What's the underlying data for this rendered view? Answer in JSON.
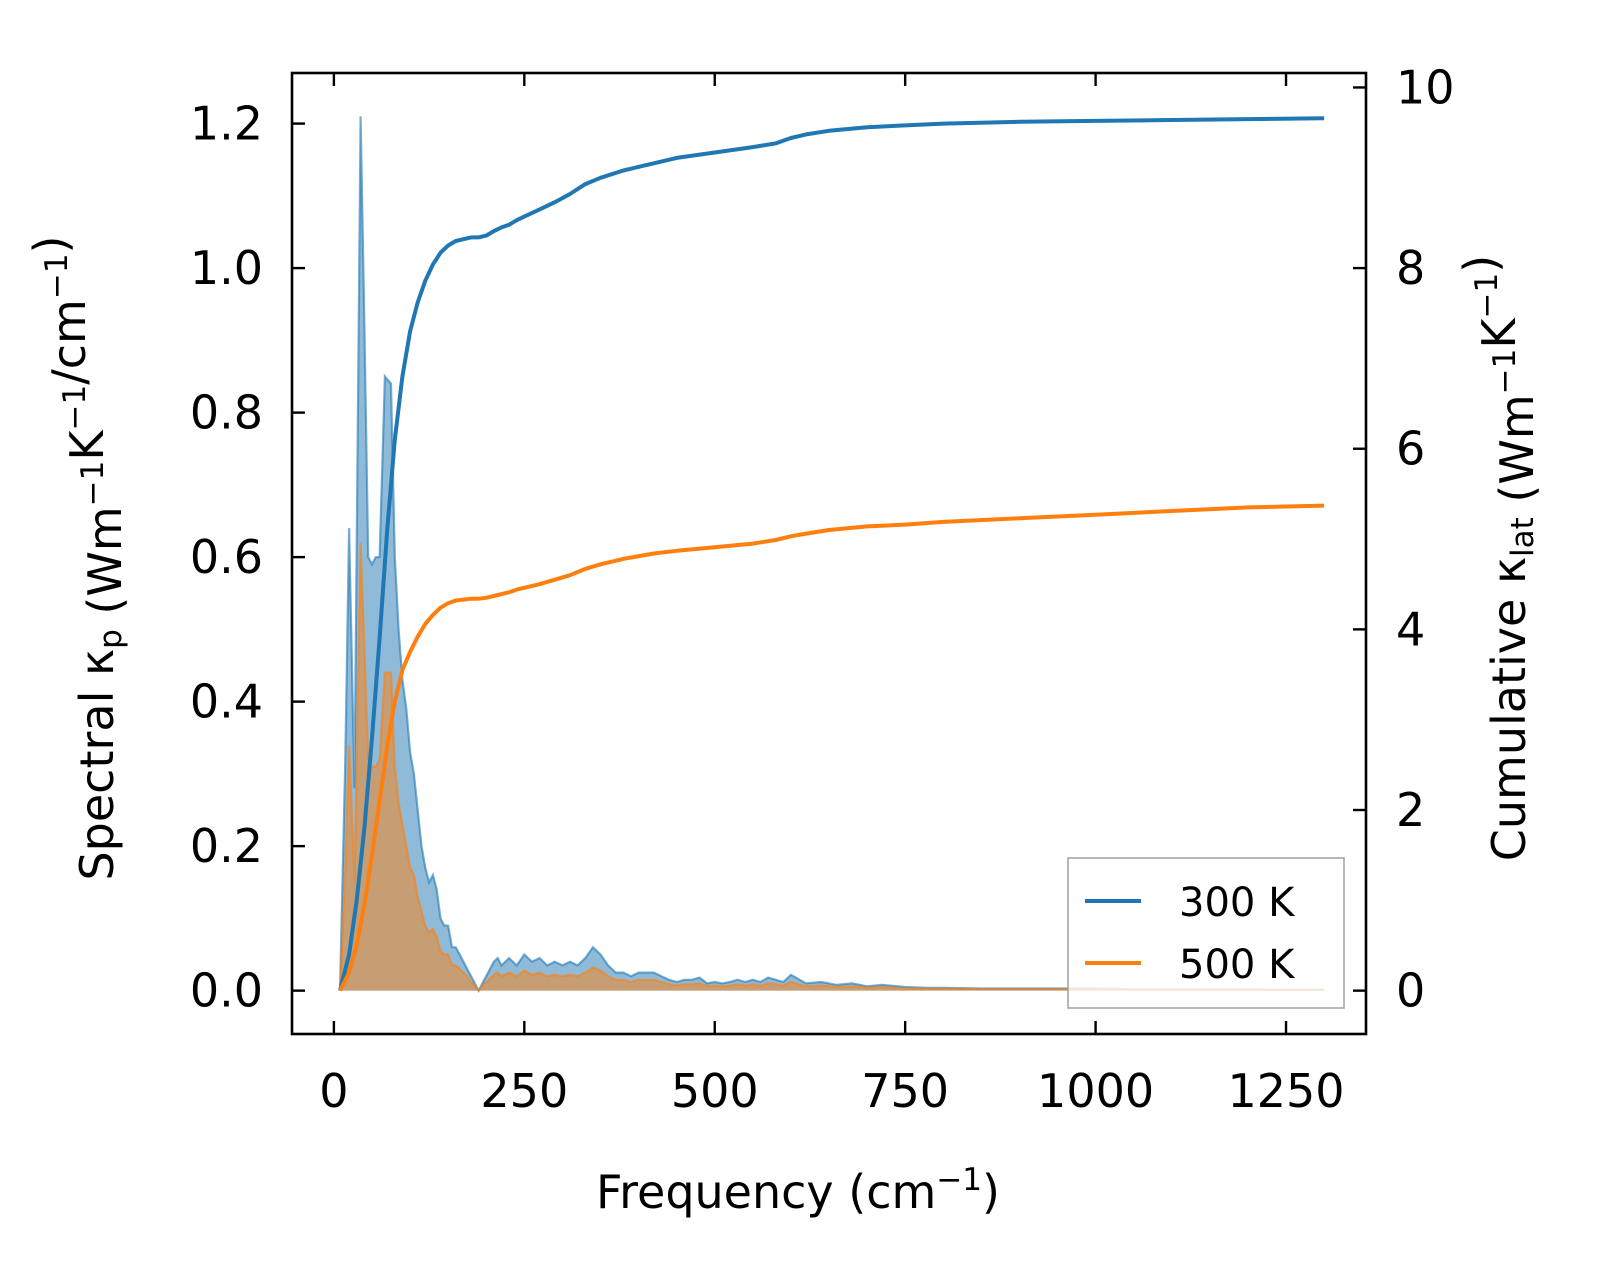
{
  "chart_data": {
    "type": "area",
    "xlabel": "Frequency (cm",
    "xlabel_sup": "−1",
    "xlabel_end": ")",
    "ylabel_left": {
      "parts": [
        {
          "t": "Spectral κ"
        },
        {
          "t": "p",
          "sub": true
        },
        {
          "t": " (Wm"
        },
        {
          "t": "−1",
          "sup": true
        },
        {
          "t": "K"
        },
        {
          "t": "−1",
          "sup": true
        },
        {
          "t": "/cm"
        },
        {
          "t": "−1",
          "sup": true
        },
        {
          "t": ")"
        }
      ]
    },
    "ylabel_right": {
      "parts": [
        {
          "t": "Cumulative κ"
        },
        {
          "t": "lat",
          "sub": true
        },
        {
          "t": " (Wm"
        },
        {
          "t": "−1",
          "sup": true
        },
        {
          "t": "K"
        },
        {
          "t": "−1",
          "sup": true
        },
        {
          "t": ")"
        }
      ]
    },
    "xlim": [
      -55,
      1355
    ],
    "ylim_left": [
      -0.06,
      1.27
    ],
    "ylim_right": [
      -0.48,
      10.16
    ],
    "xticks": [
      0,
      250,
      500,
      750,
      1000,
      1250
    ],
    "xtick_labels": [
      "0",
      "250",
      "500",
      "750",
      "1000",
      "1250"
    ],
    "yticks_left": [
      0.0,
      0.2,
      0.4,
      0.6,
      0.8,
      1.0,
      1.2
    ],
    "ytick_labels_left": [
      "0.0",
      "0.2",
      "0.4",
      "0.6",
      "0.8",
      "1.0",
      "1.2"
    ],
    "yticks_right": [
      0,
      2,
      4,
      6,
      8,
      10
    ],
    "ytick_labels_right": [
      "0",
      "2",
      "4",
      "6",
      "8",
      "10"
    ],
    "grid": false,
    "legend_position": "lower-right",
    "series": [
      {
        "name": "300 K",
        "color": "#1f77b4",
        "fill_color": "#1f77b4",
        "spectral": {
          "x": [
            8,
            15,
            20,
            27,
            35,
            40,
            45,
            50,
            55,
            60,
            67,
            75,
            80,
            85,
            90,
            95,
            100,
            105,
            110,
            115,
            120,
            125,
            130,
            135,
            140,
            145,
            150,
            155,
            160,
            165,
            170,
            175,
            180,
            190,
            200,
            210,
            215,
            220,
            230,
            240,
            250,
            260,
            270,
            280,
            290,
            300,
            310,
            320,
            330,
            340,
            350,
            360,
            370,
            380,
            390,
            400,
            410,
            420,
            430,
            440,
            450,
            460,
            470,
            480,
            490,
            500,
            510,
            520,
            530,
            540,
            550,
            560,
            570,
            580,
            590,
            600,
            620,
            640,
            660,
            680,
            700,
            720,
            750,
            780,
            800,
            850,
            900,
            950,
            1000,
            1050,
            1100,
            1150,
            1200,
            1250,
            1300
          ],
          "y": [
            0.0,
            0.32,
            0.64,
            0.28,
            1.21,
            0.92,
            0.6,
            0.59,
            0.6,
            0.6,
            0.85,
            0.84,
            0.6,
            0.5,
            0.43,
            0.39,
            0.33,
            0.3,
            0.25,
            0.2,
            0.17,
            0.15,
            0.16,
            0.14,
            0.1,
            0.09,
            0.09,
            0.06,
            0.06,
            0.05,
            0.04,
            0.03,
            0.02,
            0.0,
            0.02,
            0.04,
            0.045,
            0.035,
            0.045,
            0.035,
            0.05,
            0.04,
            0.045,
            0.035,
            0.04,
            0.035,
            0.04,
            0.035,
            0.045,
            0.06,
            0.05,
            0.035,
            0.025,
            0.025,
            0.02,
            0.025,
            0.025,
            0.025,
            0.02,
            0.015,
            0.012,
            0.015,
            0.015,
            0.018,
            0.01,
            0.012,
            0.01,
            0.012,
            0.015,
            0.012,
            0.015,
            0.012,
            0.018,
            0.015,
            0.012,
            0.022,
            0.01,
            0.012,
            0.008,
            0.01,
            0.006,
            0.008,
            0.005,
            0.004,
            0.004,
            0.003,
            0.003,
            0.003,
            0.003,
            0.002,
            0.002,
            0.002,
            0.002,
            0.001,
            0.001
          ]
        },
        "cumulative": {
          "x": [
            8,
            20,
            30,
            40,
            50,
            60,
            70,
            80,
            90,
            100,
            110,
            120,
            130,
            140,
            150,
            160,
            170,
            180,
            190,
            200,
            210,
            220,
            230,
            240,
            250,
            270,
            290,
            310,
            330,
            350,
            380,
            420,
            450,
            500,
            550,
            580,
            600,
            620,
            650,
            700,
            750,
            800,
            900,
            1000,
            1100,
            1200,
            1300
          ],
          "y": [
            0.0,
            0.4,
            1.0,
            1.8,
            2.8,
            3.9,
            5.1,
            6.1,
            6.8,
            7.3,
            7.62,
            7.86,
            8.04,
            8.17,
            8.25,
            8.3,
            8.32,
            8.34,
            8.34,
            8.36,
            8.41,
            8.45,
            8.48,
            8.53,
            8.57,
            8.65,
            8.73,
            8.82,
            8.93,
            9.0,
            9.08,
            9.16,
            9.22,
            9.28,
            9.34,
            9.38,
            9.44,
            9.48,
            9.52,
            9.56,
            9.58,
            9.6,
            9.62,
            9.63,
            9.64,
            9.65,
            9.66
          ]
        }
      },
      {
        "name": "500 K",
        "color": "#ff7f0e",
        "fill_color": "#ff7f0e",
        "spectral": {
          "x": [
            8,
            15,
            20,
            27,
            35,
            40,
            45,
            50,
            55,
            60,
            67,
            75,
            80,
            85,
            90,
            95,
            100,
            105,
            110,
            115,
            120,
            125,
            130,
            135,
            140,
            145,
            150,
            155,
            160,
            165,
            170,
            175,
            180,
            190,
            200,
            210,
            215,
            220,
            230,
            240,
            250,
            260,
            270,
            280,
            290,
            300,
            310,
            320,
            330,
            340,
            350,
            360,
            370,
            380,
            390,
            400,
            410,
            420,
            430,
            440,
            450,
            460,
            470,
            480,
            490,
            500,
            510,
            520,
            530,
            540,
            550,
            560,
            570,
            580,
            590,
            600,
            620,
            640,
            660,
            680,
            700,
            720,
            750,
            780,
            800,
            850,
            900,
            950,
            1000,
            1050,
            1100,
            1150,
            1200,
            1250,
            1300
          ],
          "y": [
            0.0,
            0.17,
            0.34,
            0.15,
            0.62,
            0.47,
            0.32,
            0.31,
            0.31,
            0.32,
            0.44,
            0.44,
            0.31,
            0.26,
            0.23,
            0.2,
            0.17,
            0.16,
            0.13,
            0.11,
            0.09,
            0.08,
            0.085,
            0.075,
            0.055,
            0.05,
            0.05,
            0.035,
            0.035,
            0.03,
            0.025,
            0.02,
            0.012,
            0.0,
            0.012,
            0.022,
            0.025,
            0.02,
            0.025,
            0.02,
            0.028,
            0.022,
            0.025,
            0.02,
            0.022,
            0.02,
            0.022,
            0.02,
            0.025,
            0.032,
            0.028,
            0.02,
            0.015,
            0.015,
            0.012,
            0.015,
            0.015,
            0.015,
            0.012,
            0.009,
            0.007,
            0.009,
            0.009,
            0.01,
            0.006,
            0.007,
            0.006,
            0.007,
            0.009,
            0.007,
            0.009,
            0.007,
            0.01,
            0.009,
            0.007,
            0.012,
            0.006,
            0.007,
            0.005,
            0.006,
            0.004,
            0.005,
            0.003,
            0.0025,
            0.0025,
            0.002,
            0.002,
            0.002,
            0.002,
            0.0015,
            0.0015,
            0.0015,
            0.0015,
            0.001,
            0.001
          ]
        },
        "cumulative": {
          "x": [
            8,
            20,
            30,
            40,
            50,
            60,
            70,
            80,
            90,
            100,
            110,
            120,
            130,
            140,
            150,
            160,
            170,
            180,
            190,
            200,
            210,
            220,
            230,
            240,
            250,
            270,
            290,
            310,
            330,
            350,
            380,
            420,
            450,
            500,
            550,
            580,
            600,
            620,
            650,
            700,
            750,
            800,
            900,
            1000,
            1100,
            1200,
            1300
          ],
          "y": [
            0.0,
            0.2,
            0.5,
            0.95,
            1.5,
            2.1,
            2.7,
            3.2,
            3.55,
            3.75,
            3.92,
            4.06,
            4.16,
            4.24,
            4.29,
            4.32,
            4.33,
            4.34,
            4.34,
            4.35,
            4.37,
            4.39,
            4.41,
            4.44,
            4.46,
            4.5,
            4.55,
            4.6,
            4.67,
            4.72,
            4.78,
            4.84,
            4.87,
            4.91,
            4.95,
            4.99,
            5.03,
            5.06,
            5.1,
            5.14,
            5.16,
            5.19,
            5.23,
            5.27,
            5.31,
            5.35,
            5.37
          ]
        }
      }
    ]
  }
}
